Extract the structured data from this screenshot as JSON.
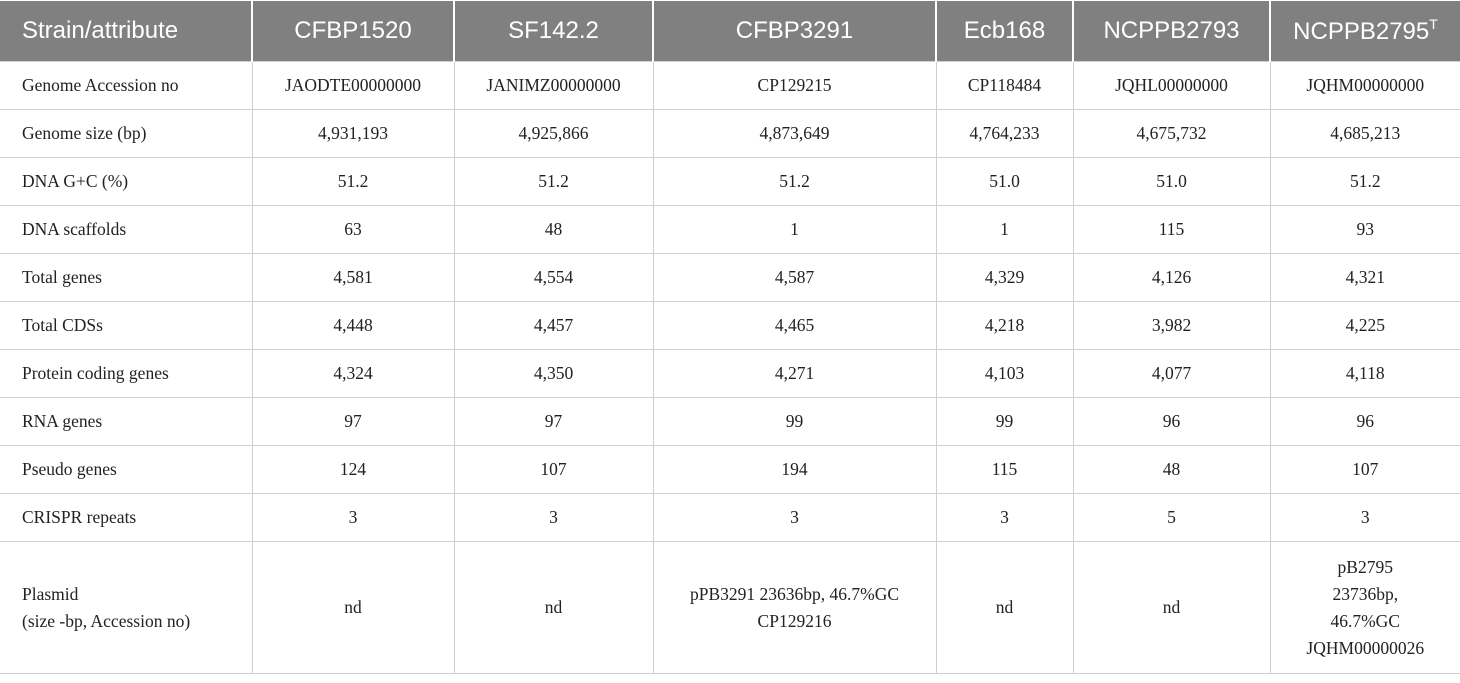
{
  "table": {
    "header": [
      "Strain/attribute",
      "CFBP1520",
      "SF142.2",
      "CFBP3291",
      "Ecb168",
      "NCPPB2793",
      {
        "text": "NCPPB2795",
        "superscript": "T"
      }
    ],
    "rows": [
      [
        "Genome Accession no",
        "JAODTE00000000",
        "JANIMZ00000000",
        "CP129215",
        "CP118484",
        "JQHL00000000",
        "JQHM00000000"
      ],
      [
        "Genome size (bp)",
        "4,931,193",
        "4,925,866",
        "4,873,649",
        "4,764,233",
        "4,675,732",
        "4,685,213"
      ],
      [
        "DNA G+C (%)",
        "51.2",
        "51.2",
        "51.2",
        "51.0",
        "51.0",
        "51.2"
      ],
      [
        "DNA scaffolds",
        "63",
        "48",
        "1",
        "1",
        "115",
        "93"
      ],
      [
        "Total genes",
        "4,581",
        "4,554",
        "4,587",
        "4,329",
        "4,126",
        "4,321"
      ],
      [
        "Total CDSs",
        "4,448",
        "4,457",
        "4,465",
        "4,218",
        "3,982",
        "4,225"
      ],
      [
        "Protein coding genes",
        "4,324",
        "4,350",
        "4,271",
        "4,103",
        "4,077",
        "4,118"
      ],
      [
        "RNA genes",
        "97",
        "97",
        "99",
        "99",
        "96",
        "96"
      ],
      [
        "Pseudo genes",
        "124",
        "107",
        "194",
        "115",
        "48",
        "107"
      ],
      [
        "CRISPR repeats",
        "3",
        "3",
        "3",
        "3",
        "5",
        "3"
      ],
      [
        [
          "Plasmid",
          "(size -bp, Accession no)"
        ],
        "nd",
        "nd",
        [
          "pPB3291 23636bp, 46.7%GC",
          "CP129216"
        ],
        "nd",
        "nd",
        [
          "pB2795",
          "23736bp,",
          "46.7%GC",
          "JQHM00000026"
        ]
      ]
    ]
  }
}
